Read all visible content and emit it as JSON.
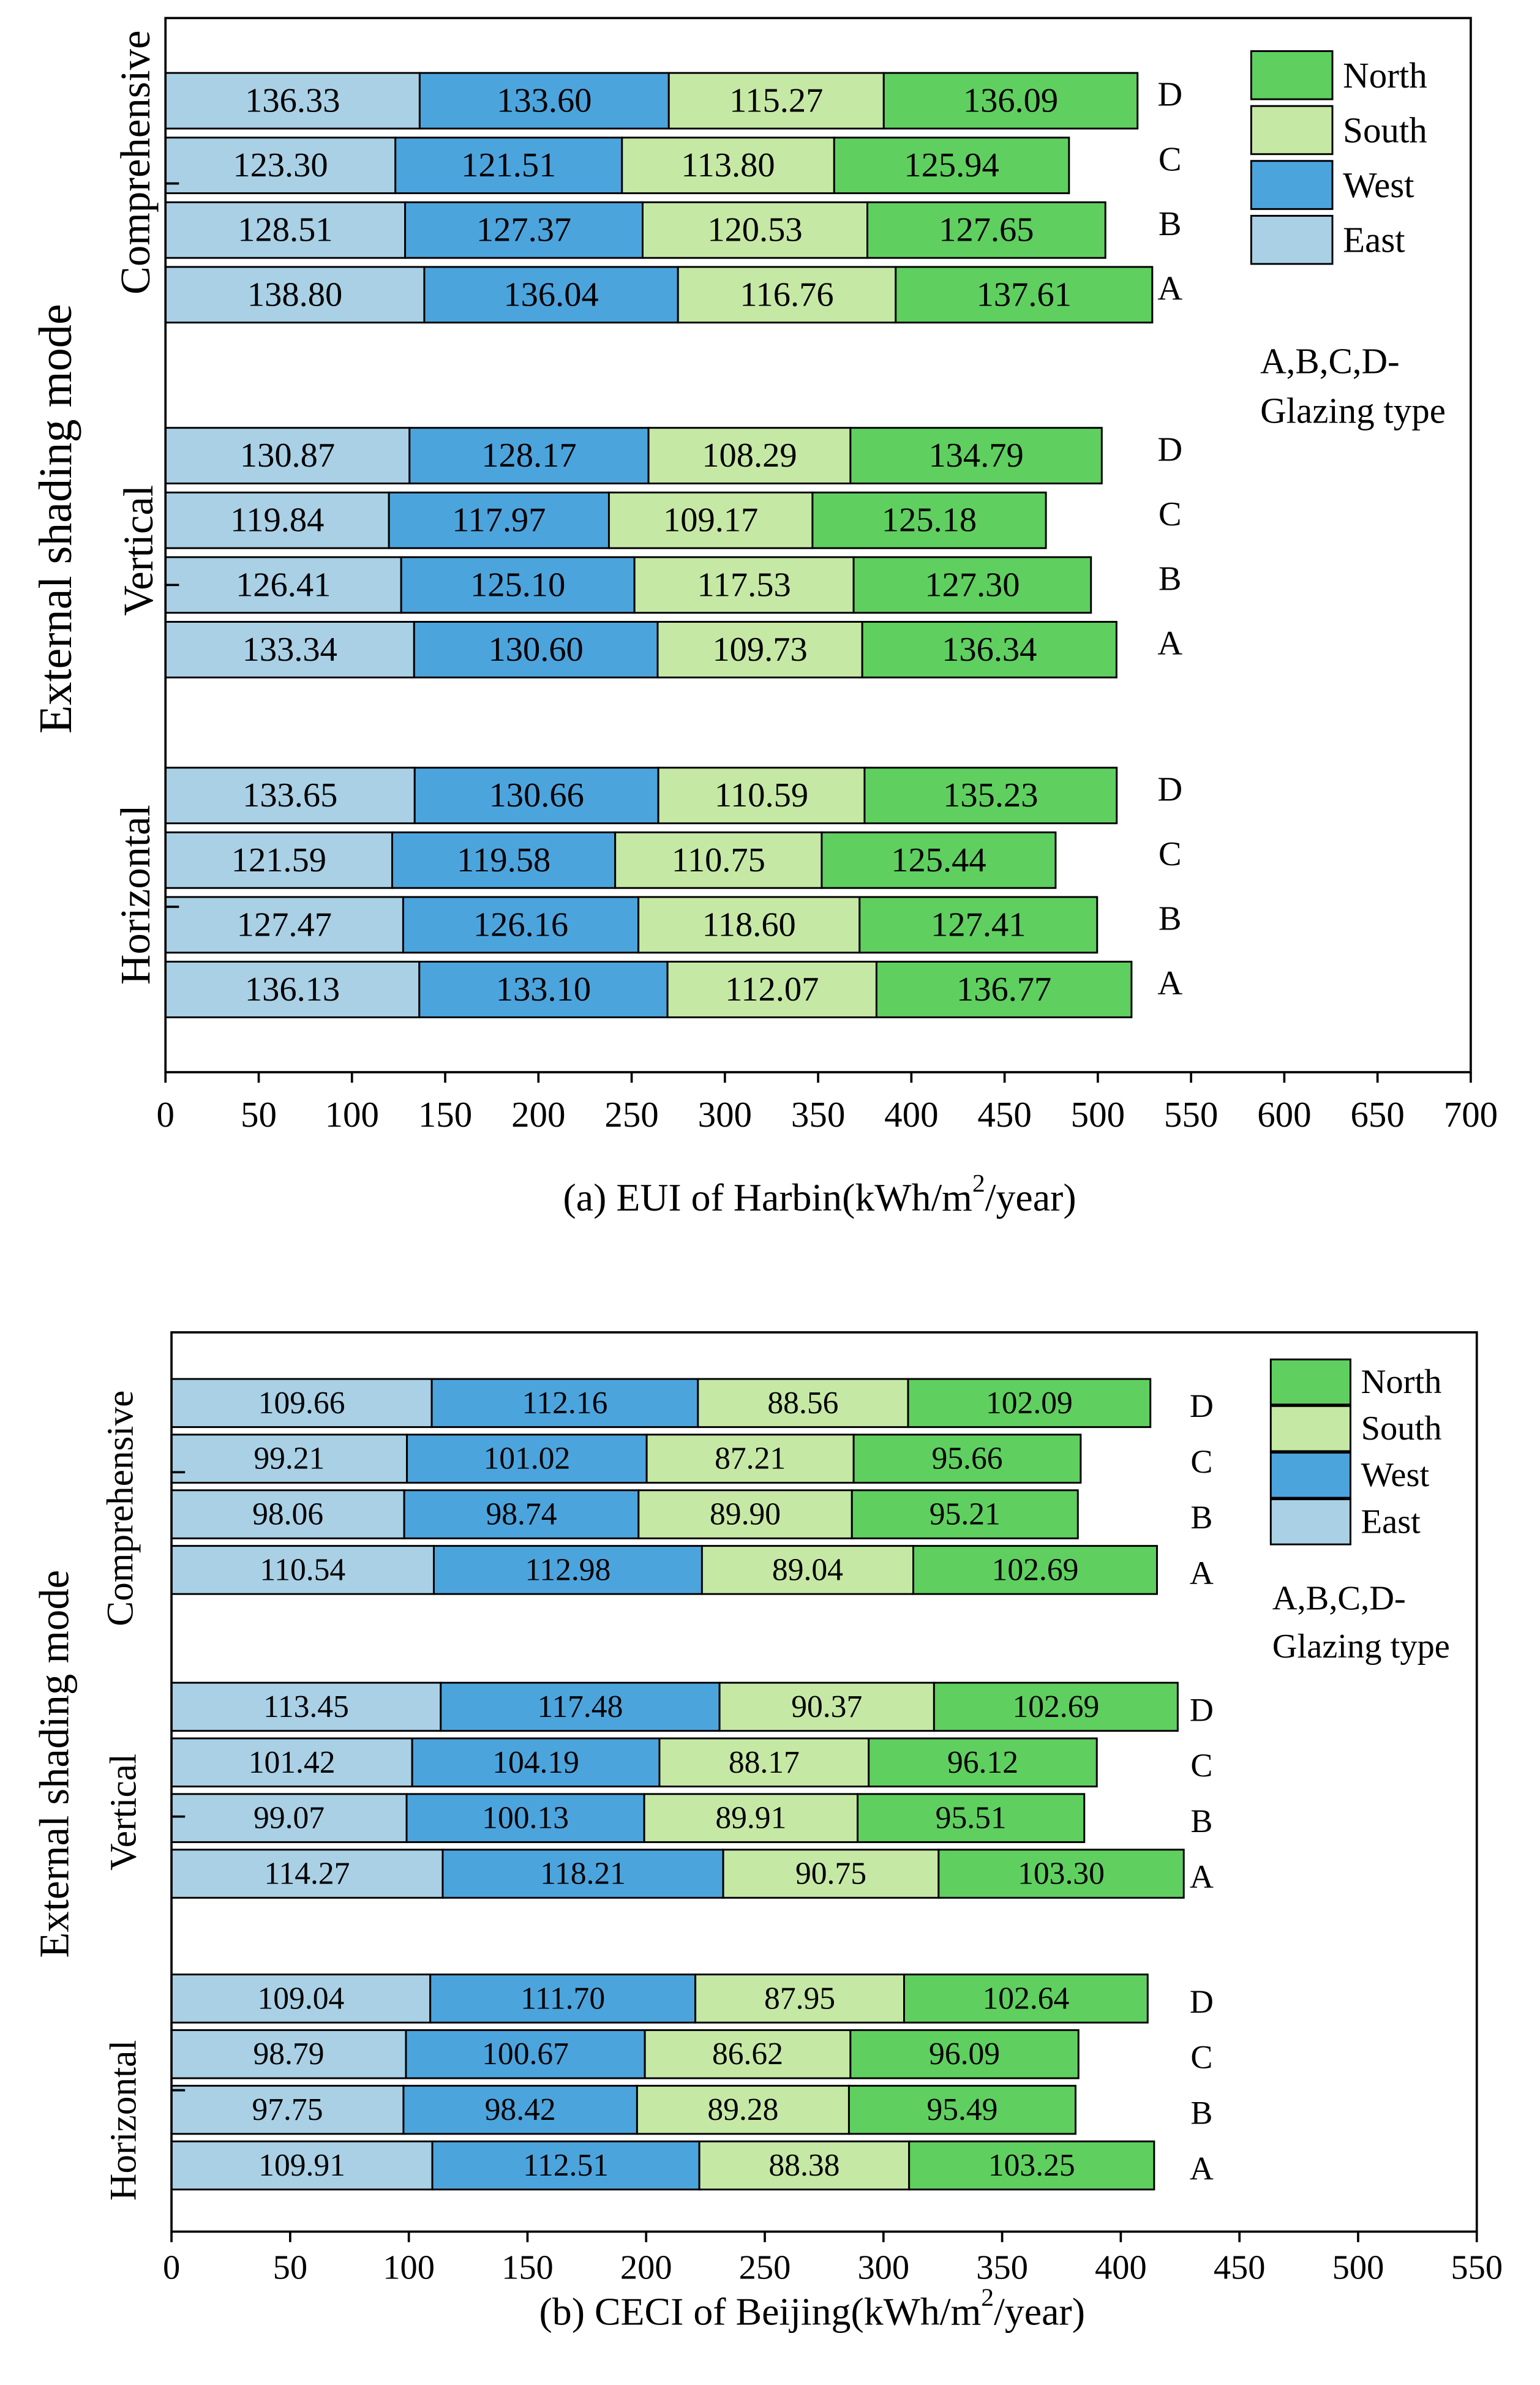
{
  "chart_data": [
    {
      "type": "bar",
      "stacked": true,
      "horizontal": true,
      "grid": false,
      "legend_position": "top-right",
      "xlabel": {
        "prefix": "(a) EUI of Harbin(kWh/m",
        "sup": "2",
        "suffix": "/year)"
      },
      "ylabel": "External shading mode",
      "xlim": [
        0,
        700
      ],
      "xticks": [
        0,
        50,
        100,
        150,
        200,
        250,
        300,
        350,
        400,
        450,
        500,
        550,
        600,
        650,
        700
      ],
      "series": [
        {
          "name": "East",
          "color": "#a9d0e5"
        },
        {
          "name": "West",
          "color": "#4ca4dd"
        },
        {
          "name": "South",
          "color": "#c6e8a5"
        },
        {
          "name": "North",
          "color": "#5fcf5f"
        }
      ],
      "groups": [
        {
          "name": "Comprehensive",
          "bars": [
            {
              "label": "D",
              "values": [
                136.33,
                133.6,
                115.27,
                136.09
              ]
            },
            {
              "label": "C",
              "values": [
                123.3,
                121.51,
                113.8,
                125.94
              ]
            },
            {
              "label": "B",
              "values": [
                128.51,
                127.37,
                120.53,
                127.65
              ]
            },
            {
              "label": "A",
              "values": [
                138.8,
                136.04,
                116.76,
                137.61
              ]
            }
          ]
        },
        {
          "name": "Vertical",
          "bars": [
            {
              "label": "D",
              "values": [
                130.87,
                128.17,
                108.29,
                134.79
              ]
            },
            {
              "label": "C",
              "values": [
                119.84,
                117.97,
                109.17,
                125.18
              ]
            },
            {
              "label": "B",
              "values": [
                126.41,
                125.1,
                117.53,
                127.3
              ]
            },
            {
              "label": "A",
              "values": [
                133.34,
                130.6,
                109.73,
                136.34
              ]
            }
          ]
        },
        {
          "name": "Horizontal",
          "bars": [
            {
              "label": "D",
              "values": [
                133.65,
                130.66,
                110.59,
                135.23
              ]
            },
            {
              "label": "C",
              "values": [
                121.59,
                119.58,
                110.75,
                125.44
              ]
            },
            {
              "label": "B",
              "values": [
                127.47,
                126.16,
                118.6,
                127.41
              ]
            },
            {
              "label": "A",
              "values": [
                136.13,
                133.1,
                112.07,
                136.77
              ]
            }
          ]
        }
      ],
      "annotation": [
        "A,B,C,D-",
        "Glazing type"
      ]
    },
    {
      "type": "bar",
      "stacked": true,
      "horizontal": true,
      "grid": false,
      "legend_position": "top-right",
      "xlabel": {
        "prefix": "(b) CECI of Beijing(kWh/m",
        "sup": "2",
        "suffix": "/year)"
      },
      "ylabel": "External shading mode",
      "xlim": [
        0,
        550
      ],
      "xticks": [
        0,
        50,
        100,
        150,
        200,
        250,
        300,
        350,
        400,
        450,
        500,
        550
      ],
      "series": [
        {
          "name": "East",
          "color": "#a9d0e5"
        },
        {
          "name": "West",
          "color": "#4ca4dd"
        },
        {
          "name": "South",
          "color": "#c6e8a5"
        },
        {
          "name": "North",
          "color": "#5fcf5f"
        }
      ],
      "groups": [
        {
          "name": "Comprehensive",
          "bars": [
            {
              "label": "D",
              "values": [
                109.66,
                112.16,
                88.56,
                102.09
              ]
            },
            {
              "label": "C",
              "values": [
                99.21,
                101.02,
                87.21,
                95.66
              ]
            },
            {
              "label": "B",
              "values": [
                98.06,
                98.74,
                89.9,
                95.21
              ]
            },
            {
              "label": "A",
              "values": [
                110.54,
                112.98,
                89.04,
                102.69
              ]
            }
          ]
        },
        {
          "name": "Vertical",
          "bars": [
            {
              "label": "D",
              "values": [
                113.45,
                117.48,
                90.37,
                102.69
              ]
            },
            {
              "label": "C",
              "values": [
                101.42,
                104.19,
                88.17,
                96.12
              ]
            },
            {
              "label": "B",
              "values": [
                99.07,
                100.13,
                89.91,
                95.51
              ]
            },
            {
              "label": "A",
              "values": [
                114.27,
                118.21,
                90.75,
                103.3
              ]
            }
          ]
        },
        {
          "name": "Horizontal",
          "bars": [
            {
              "label": "D",
              "values": [
                109.04,
                111.7,
                87.95,
                102.64
              ]
            },
            {
              "label": "C",
              "values": [
                98.79,
                100.67,
                86.62,
                96.09
              ]
            },
            {
              "label": "B",
              "values": [
                97.75,
                98.42,
                89.28,
                95.49
              ]
            },
            {
              "label": "A",
              "values": [
                109.91,
                112.51,
                88.38,
                103.25
              ]
            }
          ]
        }
      ],
      "annotation": [
        "A,B,C,D-",
        "Glazing type"
      ]
    }
  ]
}
